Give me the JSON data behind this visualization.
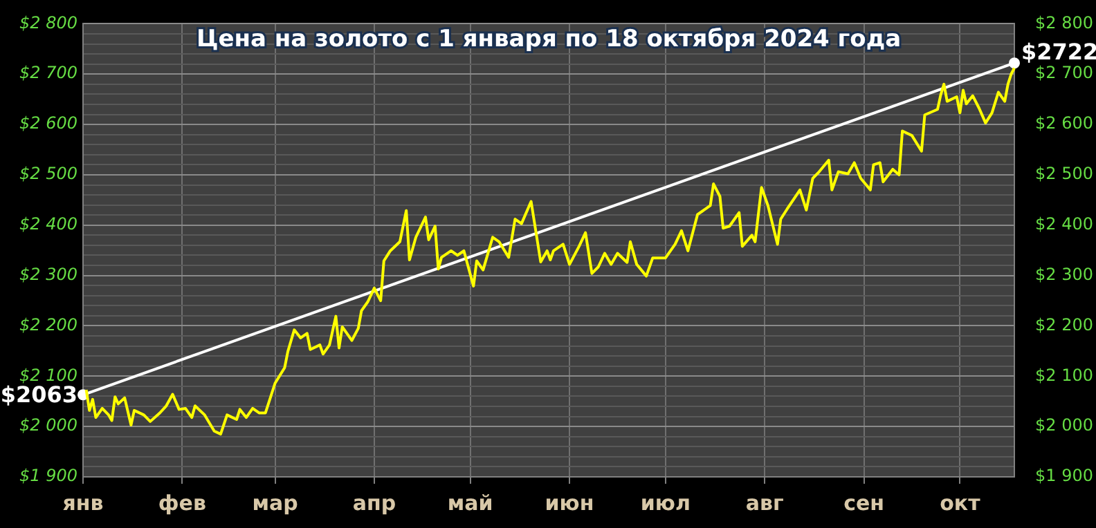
{
  "chart_data": {
    "type": "line",
    "title": "Цена на золото с 1 января по 18 октября 2024 года",
    "categories": [
      "янв",
      null,
      null,
      null,
      null,
      null,
      null,
      null,
      null,
      null,
      null,
      null,
      null,
      null,
      null,
      null,
      null,
      null,
      null,
      null,
      null,
      null,
      null,
      null,
      null,
      null,
      null,
      null,
      null,
      null,
      null,
      "фев",
      null,
      null,
      null,
      null,
      null,
      null,
      null,
      null,
      null,
      null,
      null,
      null,
      null,
      null,
      null,
      null,
      null,
      null,
      null,
      null,
      null,
      null,
      null,
      null,
      null,
      null,
      null,
      null,
      "мар",
      null,
      null,
      null,
      null,
      null,
      null,
      null,
      null,
      null,
      null,
      null,
      null,
      null,
      null,
      null,
      null,
      null,
      null,
      null,
      null,
      null,
      null,
      null,
      null,
      null,
      null,
      null,
      null,
      null,
      null,
      "апр",
      null,
      null,
      null,
      null,
      null,
      null,
      null,
      null,
      null,
      null,
      null,
      null,
      null,
      null,
      null,
      null,
      null,
      null,
      null,
      null,
      null,
      null,
      null,
      null,
      null,
      null,
      null,
      null,
      null,
      "май",
      null,
      null,
      null,
      null,
      null,
      null,
      null,
      null,
      null,
      null,
      null,
      null,
      null,
      null,
      null,
      null,
      null,
      null,
      null,
      null,
      null,
      null,
      null,
      null,
      null,
      null,
      null,
      null,
      null,
      null,
      "июн",
      null,
      null,
      null,
      null,
      null,
      null,
      null,
      null,
      null,
      null,
      null,
      null,
      null,
      null,
      null,
      null,
      null,
      null,
      null,
      null,
      null,
      null,
      null,
      null,
      null,
      null,
      null,
      null,
      null,
      "июл",
      null,
      null,
      null,
      null,
      null,
      null,
      null,
      null,
      null,
      null,
      null,
      null,
      null,
      null,
      null,
      null,
      null,
      null,
      null,
      null,
      null,
      null,
      null,
      null,
      null,
      null,
      null,
      null,
      null,
      null,
      "авг",
      null,
      null,
      null,
      null,
      null,
      null,
      null,
      null,
      null,
      null,
      null,
      null,
      null,
      null,
      null,
      null,
      null,
      null,
      null,
      null,
      null,
      null,
      null,
      null,
      null,
      null,
      null,
      null,
      null,
      null,
      "сен",
      null,
      null,
      null,
      null,
      null,
      null,
      null,
      null,
      null,
      null,
      null,
      null,
      null,
      null,
      null,
      null,
      null,
      null,
      null,
      null,
      null,
      null,
      null,
      null,
      null,
      null,
      null,
      null,
      null,
      "окт",
      null,
      null,
      null,
      null,
      null,
      null,
      null,
      null,
      null,
      null,
      null,
      null,
      null,
      null,
      null,
      null,
      null
    ],
    "series": [
      {
        "color": "#ffff00",
        "marker": "none",
        "values": [
          null,
          2073,
          2032,
          2054,
          2018,
          null,
          2036,
          null,
          2023,
          2012,
          2059,
          2045,
          null,
          2057,
          null,
          2003,
          2032,
          null,
          null,
          2023,
          null,
          2010,
          null,
          null,
          2027,
          null,
          2041,
          null,
          2064,
          null,
          2034,
          null,
          2036,
          null,
          2018,
          2041,
          null,
          null,
          2023,
          null,
          null,
          1991,
          null,
          1985,
          null,
          2023,
          null,
          null,
          2014,
          2034,
          null,
          2018,
          null,
          2036,
          null,
          2027,
          null,
          2027,
          null,
          null,
          2086,
          null,
          null,
          2117,
          2149,
          null,
          2192,
          null,
          2176,
          null,
          2185,
          2153,
          null,
          null,
          2162,
          2144,
          null,
          2162,
          null,
          2219,
          2156,
          2198,
          null,
          null,
          2171,
          null,
          2195,
          2230,
          null,
          2248,
          null,
          2275,
          null,
          2250,
          2329,
          null,
          2349,
          null,
          null,
          2367,
          null,
          2429,
          2331,
          null,
          2376,
          null,
          null,
          2416,
          2371,
          null,
          2398,
          2313,
          2336,
          null,
          null,
          2349,
          null,
          2340,
          null,
          2349,
          null,
          null,
          2279,
          2329,
          null,
          2311,
          null,
          null,
          2376,
          null,
          2367,
          null,
          null,
          2336,
          null,
          2412,
          null,
          2403,
          null,
          null,
          2447,
          null,
          null,
          2327,
          null,
          2349,
          2331,
          2349,
          null,
          null,
          2362,
          null,
          2322,
          null,
          null,
          2358,
          null,
          2385,
          null,
          2304,
          null,
          2317,
          null,
          2344,
          null,
          2322,
          null,
          2344,
          null,
          null,
          2326,
          2367,
          null,
          2322,
          null,
          null,
          2299,
          null,
          2335,
          null,
          null,
          null,
          2335,
          null,
          null,
          2362,
          null,
          2389,
          null,
          2349,
          null,
          null,
          2421,
          null,
          null,
          null,
          2439,
          2482,
          null,
          2457,
          2394,
          null,
          2398,
          null,
          null,
          2425,
          2358,
          null,
          null,
          2380,
          2367,
          null,
          2475,
          null,
          2439,
          null,
          null,
          2362,
          2412,
          null,
          2432,
          null,
          null,
          null,
          2470,
          null,
          2430,
          null,
          2493,
          null,
          2506,
          null,
          null,
          2529,
          2470,
          null,
          2506,
          null,
          null,
          2502,
          null,
          2524,
          null,
          2493,
          null,
          null,
          2470,
          2520,
          null,
          2524,
          2486,
          null,
          null,
          2511,
          null,
          2500,
          2587,
          null,
          null,
          2578,
          null,
          null,
          2547,
          2619,
          null,
          null,
          null,
          2630,
          2659,
          2680,
          2646,
          null,
          null,
          2655,
          2623,
          2668,
          2641,
          null,
          2657,
          null,
          2632,
          null,
          2603,
          null,
          2623,
          null,
          2664,
          null,
          2646,
          2680,
          2700,
          2712
        ]
      },
      {
        "color": "#ffffff",
        "marker": "circle",
        "values": [
          2063,
          null,
          null,
          null,
          null,
          null,
          null,
          null,
          null,
          null,
          null,
          null,
          null,
          null,
          null,
          null,
          null,
          null,
          null,
          null,
          null,
          null,
          null,
          null,
          null,
          null,
          null,
          null,
          null,
          null,
          null,
          null,
          null,
          null,
          null,
          null,
          null,
          null,
          null,
          null,
          null,
          null,
          null,
          null,
          null,
          null,
          null,
          null,
          null,
          null,
          null,
          null,
          null,
          null,
          null,
          null,
          null,
          null,
          null,
          null,
          null,
          null,
          null,
          null,
          null,
          null,
          null,
          null,
          null,
          null,
          null,
          null,
          null,
          null,
          null,
          null,
          null,
          null,
          null,
          null,
          null,
          null,
          null,
          null,
          null,
          null,
          null,
          null,
          null,
          null,
          null,
          null,
          null,
          null,
          null,
          null,
          null,
          null,
          null,
          null,
          null,
          null,
          null,
          null,
          null,
          null,
          null,
          null,
          null,
          null,
          null,
          null,
          null,
          null,
          null,
          null,
          null,
          null,
          null,
          null,
          null,
          null,
          null,
          null,
          null,
          null,
          null,
          null,
          null,
          null,
          null,
          null,
          null,
          null,
          null,
          null,
          null,
          null,
          null,
          null,
          null,
          null,
          null,
          null,
          null,
          null,
          null,
          null,
          null,
          null,
          null,
          null,
          null,
          null,
          null,
          null,
          null,
          null,
          null,
          null,
          null,
          null,
          null,
          null,
          null,
          null,
          null,
          null,
          null,
          null,
          null,
          null,
          null,
          null,
          null,
          null,
          null,
          null,
          null,
          null,
          null,
          null,
          null,
          null,
          null,
          null,
          null,
          null,
          null,
          null,
          null,
          null,
          null,
          null,
          null,
          null,
          null,
          null,
          null,
          null,
          null,
          null,
          null,
          null,
          null,
          null,
          null,
          null,
          null,
          null,
          null,
          null,
          null,
          null,
          null,
          null,
          null,
          null,
          null,
          null,
          null,
          null,
          null,
          null,
          null,
          null,
          null,
          null,
          null,
          null,
          null,
          null,
          null,
          null,
          null,
          null,
          null,
          null,
          null,
          null,
          null,
          null,
          null,
          null,
          null,
          null,
          null,
          null,
          null,
          null,
          null,
          null,
          null,
          null,
          null,
          null,
          null,
          null,
          null,
          null,
          null,
          null,
          null,
          null,
          null,
          null,
          null,
          null,
          null,
          null,
          null,
          null,
          null,
          null,
          null,
          null,
          null,
          null,
          null,
          null,
          null,
          null,
          null,
          null,
          null,
          null,
          null,
          null,
          null,
          null,
          null,
          2722
        ],
        "value_labels": [
          "$2063",
          null,
          null,
          null,
          null,
          null,
          null,
          null,
          null,
          null,
          null,
          null,
          null,
          null,
          null,
          null,
          null,
          null,
          null,
          null,
          null,
          null,
          null,
          null,
          null,
          null,
          null,
          null,
          null,
          null,
          null,
          null,
          null,
          null,
          null,
          null,
          null,
          null,
          null,
          null,
          null,
          null,
          null,
          null,
          null,
          null,
          null,
          null,
          null,
          null,
          null,
          null,
          null,
          null,
          null,
          null,
          null,
          null,
          null,
          null,
          null,
          null,
          null,
          null,
          null,
          null,
          null,
          null,
          null,
          null,
          null,
          null,
          null,
          null,
          null,
          null,
          null,
          null,
          null,
          null,
          null,
          null,
          null,
          null,
          null,
          null,
          null,
          null,
          null,
          null,
          null,
          null,
          null,
          null,
          null,
          null,
          null,
          null,
          null,
          null,
          null,
          null,
          null,
          null,
          null,
          null,
          null,
          null,
          null,
          null,
          null,
          null,
          null,
          null,
          null,
          null,
          null,
          null,
          null,
          null,
          null,
          null,
          null,
          null,
          null,
          null,
          null,
          null,
          null,
          null,
          null,
          null,
          null,
          null,
          null,
          null,
          null,
          null,
          null,
          null,
          null,
          null,
          null,
          null,
          null,
          null,
          null,
          null,
          null,
          null,
          null,
          null,
          null,
          null,
          null,
          null,
          null,
          null,
          null,
          null,
          null,
          null,
          null,
          null,
          null,
          null,
          null,
          null,
          null,
          null,
          null,
          null,
          null,
          null,
          null,
          null,
          null,
          null,
          null,
          null,
          null,
          null,
          null,
          null,
          null,
          null,
          null,
          null,
          null,
          null,
          null,
          null,
          null,
          null,
          null,
          null,
          null,
          null,
          null,
          null,
          null,
          null,
          null,
          null,
          null,
          null,
          null,
          null,
          null,
          null,
          null,
          null,
          null,
          null,
          null,
          null,
          null,
          null,
          null,
          null,
          null,
          null,
          null,
          null,
          null,
          null,
          null,
          null,
          null,
          null,
          null,
          null,
          null,
          null,
          null,
          null,
          null,
          null,
          null,
          null,
          null,
          null,
          null,
          null,
          null,
          null,
          null,
          null,
          null,
          null,
          null,
          null,
          null,
          null,
          null,
          null,
          null,
          null,
          null,
          null,
          null,
          null,
          null,
          null,
          null,
          null,
          null,
          null,
          null,
          null,
          null,
          null,
          null,
          null,
          null,
          null,
          null,
          null,
          null,
          null,
          null,
          null,
          null,
          null,
          null,
          null,
          null,
          null,
          null,
          null,
          null,
          "$2722"
        ]
      }
    ],
    "ylim": [
      1900,
      2800
    ],
    "yticks": [
      {
        "value": 1900,
        "label": "$1 900"
      },
      {
        "value": 1920,
        "label": null
      },
      {
        "value": 1940,
        "label": null
      },
      {
        "value": 1960,
        "label": null
      },
      {
        "value": 1980,
        "label": null
      },
      {
        "value": 2000,
        "label": "$2 000"
      },
      {
        "value": 2020,
        "label": null
      },
      {
        "value": 2040,
        "label": null
      },
      {
        "value": 2060,
        "label": null
      },
      {
        "value": 2080,
        "label": null
      },
      {
        "value": 2100,
        "label": "$2 100"
      },
      {
        "value": 2120,
        "label": null
      },
      {
        "value": 2140,
        "label": null
      },
      {
        "value": 2160,
        "label": null
      },
      {
        "value": 2180,
        "label": null
      },
      {
        "value": 2200,
        "label": "$2 200"
      },
      {
        "value": 2220,
        "label": null
      },
      {
        "value": 2240,
        "label": null
      },
      {
        "value": 2260,
        "label": null
      },
      {
        "value": 2280,
        "label": null
      },
      {
        "value": 2300,
        "label": "$2 300"
      },
      {
        "value": 2320,
        "label": null
      },
      {
        "value": 2340,
        "label": null
      },
      {
        "value": 2360,
        "label": null
      },
      {
        "value": 2380,
        "label": null
      },
      {
        "value": 2400,
        "label": "$2 400"
      },
      {
        "value": 2420,
        "label": null
      },
      {
        "value": 2440,
        "label": null
      },
      {
        "value": 2460,
        "label": null
      },
      {
        "value": 2480,
        "label": null
      },
      {
        "value": 2500,
        "label": "$2 500"
      },
      {
        "value": 2520,
        "label": null
      },
      {
        "value": 2540,
        "label": null
      },
      {
        "value": 2560,
        "label": null
      },
      {
        "value": 2580,
        "label": null
      },
      {
        "value": 2600,
        "label": "$2 600"
      },
      {
        "value": 2620,
        "label": null
      },
      {
        "value": 2640,
        "label": null
      },
      {
        "value": 2660,
        "label": null
      },
      {
        "value": 2680,
        "label": null
      },
      {
        "value": 2700,
        "label": "$2 700"
      },
      {
        "value": 2720,
        "label": null
      },
      {
        "value": 2740,
        "label": null
      },
      {
        "value": 2760,
        "label": null
      },
      {
        "value": 2780,
        "label": null
      },
      {
        "value": 2800,
        "label": "$2 800"
      }
    ],
    "y2lim": [
      1900,
      2800
    ],
    "y2ticks": [
      {
        "value": 1900,
        "label": "$1 900"
      },
      {
        "value": 2000,
        "label": "$2 000"
      },
      {
        "value": 2100,
        "label": "$2 100"
      },
      {
        "value": 2200,
        "label": "$2 200"
      },
      {
        "value": 2300,
        "label": "$2 300"
      },
      {
        "value": 2400,
        "label": "$2 400"
      },
      {
        "value": 2500,
        "label": "$2 500"
      },
      {
        "value": 2600,
        "label": "$2 600"
      },
      {
        "value": 2700,
        "label": "$2 700"
      },
      {
        "value": 2800,
        "label": "$2 800"
      }
    ],
    "grid": true,
    "legend": false
  }
}
